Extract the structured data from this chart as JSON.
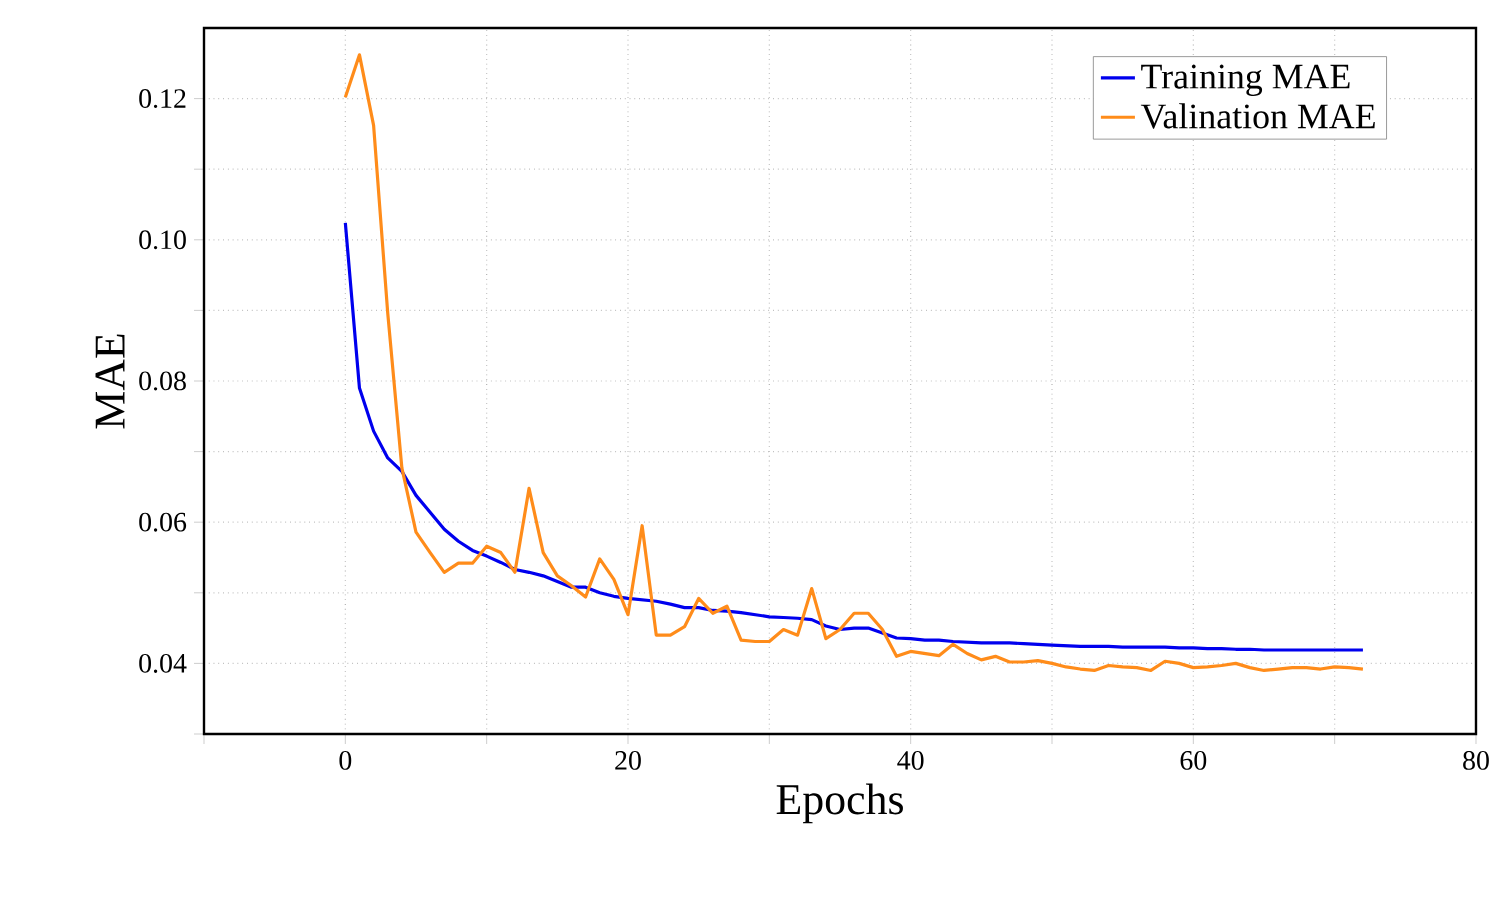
{
  "chart_data": {
    "type": "line",
    "xlabel": "Epochs",
    "ylabel": "MAE",
    "xlim": [
      -10,
      80
    ],
    "ylim": [
      0.03,
      0.13
    ],
    "xticks": [
      {
        "value": -10,
        "label": null
      },
      0,
      {
        "value": 10,
        "label": null
      },
      20,
      {
        "value": 30,
        "label": null
      },
      40,
      {
        "value": 50,
        "label": null
      },
      60,
      {
        "value": 70,
        "label": null
      },
      80
    ],
    "yticks": [
      {
        "value": 0.03,
        "label": null
      },
      0.04,
      {
        "value": 0.05,
        "label": null
      },
      0.06,
      {
        "value": 0.07,
        "label": null
      },
      0.08,
      {
        "value": 0.09,
        "label": null
      },
      {
        "value": 0.1,
        "label": "0.10"
      },
      {
        "value": 0.11,
        "label": null
      },
      0.12
    ],
    "grid": true,
    "legend": "top right",
    "marker": "none",
    "line_style": "solid",
    "x": [
      0,
      1,
      2,
      3,
      4,
      5,
      6,
      7,
      8,
      9,
      10,
      11,
      12,
      13,
      14,
      15,
      16,
      17,
      18,
      19,
      20,
      21,
      22,
      23,
      24,
      25,
      26,
      27,
      28,
      29,
      30,
      31,
      32,
      33,
      34,
      35,
      36,
      37,
      38,
      39,
      40,
      41,
      42,
      43,
      44,
      45,
      46,
      47,
      48,
      49,
      50,
      51,
      52,
      53,
      54,
      55,
      56,
      57,
      58,
      59,
      60,
      61,
      62,
      63,
      64,
      65,
      66,
      67,
      68,
      69,
      70,
      71,
      72
    ],
    "series": [
      {
        "name": "Training MAE",
        "color": "#0000ee",
        "values": [
          0.1024,
          0.079,
          0.0729,
          0.0691,
          0.0672,
          0.0638,
          0.0614,
          0.059,
          0.0573,
          0.056,
          0.0552,
          0.0543,
          0.0533,
          0.0529,
          0.0524,
          0.0516,
          0.0508,
          0.0508,
          0.05,
          0.0495,
          0.0492,
          0.049,
          0.0488,
          0.0484,
          0.0479,
          0.0479,
          0.0475,
          0.0474,
          0.0472,
          0.0469,
          0.0466,
          0.0465,
          0.0464,
          0.0462,
          0.0453,
          0.0448,
          0.045,
          0.045,
          0.0443,
          0.0436,
          0.0435,
          0.0433,
          0.0433,
          0.0431,
          0.043,
          0.0429,
          0.0429,
          0.0429,
          0.0428,
          0.0427,
          0.0426,
          0.0425,
          0.0424,
          0.0424,
          0.0424,
          0.0423,
          0.0423,
          0.0423,
          0.0423,
          0.0422,
          0.0422,
          0.0421,
          0.0421,
          0.042,
          0.042,
          0.0419,
          0.0419,
          0.0419,
          0.0419,
          0.0419,
          0.0419,
          0.0419,
          0.0419
        ]
      },
      {
        "name": "Valination MAE",
        "color": "#ff8c1a",
        "values": [
          0.1202,
          0.1262,
          0.1162,
          0.0896,
          0.0677,
          0.0586,
          0.0557,
          0.0529,
          0.0542,
          0.0542,
          0.0566,
          0.0557,
          0.0529,
          0.0648,
          0.0557,
          0.0524,
          0.051,
          0.0494,
          0.0548,
          0.0519,
          0.0469,
          0.0595,
          0.044,
          0.044,
          0.0452,
          0.0492,
          0.0471,
          0.0481,
          0.0433,
          0.0431,
          0.0431,
          0.0448,
          0.044,
          0.0506,
          0.0435,
          0.0448,
          0.0471,
          0.0471,
          0.0448,
          0.041,
          0.0417,
          0.0414,
          0.0411,
          0.0427,
          0.0414,
          0.0405,
          0.041,
          0.0402,
          0.0402,
          0.0404,
          0.04,
          0.0395,
          0.0392,
          0.039,
          0.0397,
          0.0395,
          0.0394,
          0.039,
          0.0403,
          0.04,
          0.0394,
          0.0395,
          0.0397,
          0.04,
          0.0394,
          0.039,
          0.0392,
          0.0394,
          0.0394,
          0.0392,
          0.0395,
          0.0394,
          0.0392
        ]
      }
    ]
  }
}
